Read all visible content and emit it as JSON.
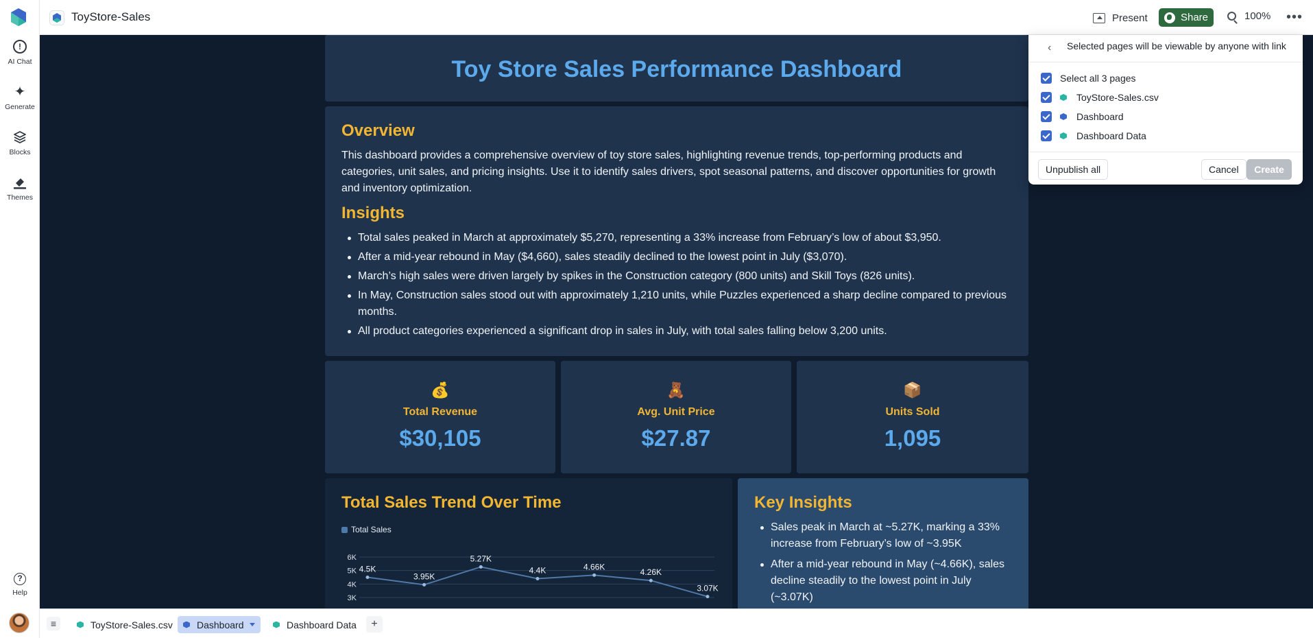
{
  "app": {
    "doc_title": "ToyStore-Sales",
    "present_label": "Present",
    "share_label": "Share",
    "zoom_level": "100%"
  },
  "sidebar": {
    "items": [
      {
        "label": "AI Chat",
        "icon": "chat-icon"
      },
      {
        "label": "Generate",
        "icon": "sparkle-icon"
      },
      {
        "label": "Blocks",
        "icon": "layers-icon"
      },
      {
        "label": "Themes",
        "icon": "paint-icon"
      }
    ],
    "help_label": "Help"
  },
  "dashboard": {
    "title": "Toy Store Sales Performance Dashboard",
    "overview_heading": "Overview",
    "overview_text": "This dashboard provides a comprehensive overview of toy store sales, highlighting revenue trends, top-performing products and categories, unit sales, and pricing insights. Use it to identify sales drivers, spot seasonal patterns, and discover opportunities for growth and inventory optimization.",
    "insights_heading": "Insights",
    "insights": [
      "Total sales peaked in March at approximately $5,270, representing a 33% increase from February’s low of about $3,950.",
      "After a mid-year rebound in May ($4,660), sales steadily declined to the lowest point in July ($3,070).",
      "March’s high sales were driven largely by spikes in the Construction category (800 units) and Skill Toys (826 units).",
      "In May, Construction sales stood out with approximately 1,210 units, while Puzzles experienced a sharp decline compared to previous months.",
      "All product categories experienced a significant drop in sales in July, with total sales falling below 3,200 units."
    ],
    "kpis": [
      {
        "emoji": "💰",
        "label": "Total Revenue",
        "value": "$30,105"
      },
      {
        "emoji": "🧸",
        "label": "Avg. Unit Price",
        "value": "$27.87"
      },
      {
        "emoji": "📦",
        "label": "Units Sold",
        "value": "1,095"
      }
    ],
    "trend_title": "Total Sales Trend Over Time",
    "legend_label": "Total Sales",
    "key_insights_heading": "Key Insights",
    "key_insights": [
      "Sales peak in March at ~5.27K, marking a 33% increase from February’s low of ~3.95K",
      "After a mid-year rebound in May (~4.66K), sales decline steadily to the lowest point in July (~3.07K)"
    ]
  },
  "chart_data": {
    "type": "line",
    "series": [
      {
        "name": "Total Sales",
        "values": [
          4500,
          3950,
          5270,
          4400,
          4660,
          4260,
          3070
        ]
      }
    ],
    "data_labels": [
      "4.5K",
      "3.95K",
      "5.27K",
      "4.4K",
      "4.66K",
      "4.26K",
      "3.07K"
    ],
    "y_ticks": [
      "6K",
      "5K",
      "4K",
      "3K"
    ],
    "y_tick_values": [
      6000,
      5000,
      4000,
      3000
    ],
    "ylim": [
      3000,
      6000
    ],
    "grid": true,
    "legend": "top-left",
    "line_color": "#4f79a8"
  },
  "share_popover": {
    "header": "Selected pages will be viewable by anyone with link",
    "select_all_label": "Select all 3 pages",
    "pages": [
      {
        "name": "ToyStore-Sales.csv",
        "color": "#2bb3a3"
      },
      {
        "name": "Dashboard",
        "color": "#3b67c9"
      },
      {
        "name": "Dashboard Data",
        "color": "#2bb3a3"
      }
    ],
    "unpublish_label": "Unpublish all",
    "cancel_label": "Cancel",
    "create_label": "Create"
  },
  "tabs": [
    {
      "label": "ToyStore-Sales.csv",
      "color": "#2bb3a3"
    },
    {
      "label": "Dashboard",
      "color": "#3b67c9"
    },
    {
      "label": "Dashboard Data",
      "color": "#2bb3a3"
    }
  ]
}
